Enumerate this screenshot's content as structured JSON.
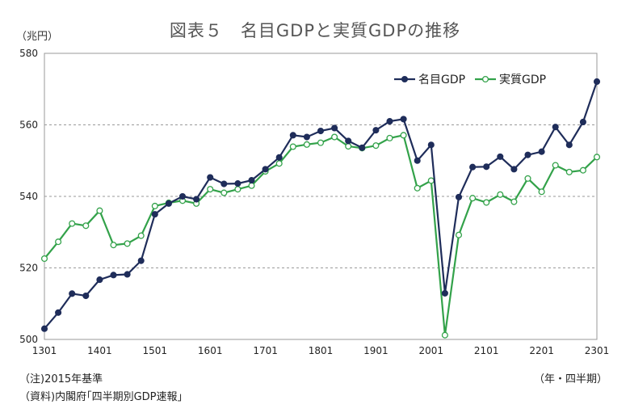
{
  "chart_data": {
    "type": "line",
    "title": "図表５　名目GDPと実質GDPの推移",
    "yunit": "（兆円）",
    "xunit": "（年・四半期）",
    "ylim": [
      500,
      580
    ],
    "yticks": [
      500,
      520,
      540,
      560,
      580
    ],
    "grid": true,
    "legend_position": "top-right",
    "x": [
      "1301",
      "1302",
      "1303",
      "1304",
      "1401",
      "1402",
      "1403",
      "1404",
      "1501",
      "1502",
      "1503",
      "1504",
      "1601",
      "1602",
      "1603",
      "1604",
      "1701",
      "1702",
      "1703",
      "1704",
      "1801",
      "1802",
      "1803",
      "1804",
      "1901",
      "1902",
      "1903",
      "1904",
      "2001",
      "2002",
      "2003",
      "2004",
      "2101",
      "2102",
      "2103",
      "2104",
      "2201",
      "2202",
      "2203",
      "2204",
      "2301"
    ],
    "xticks": [
      "1301",
      "1401",
      "1501",
      "1601",
      "1701",
      "1801",
      "1901",
      "2001",
      "2101",
      "2201",
      "2301"
    ],
    "series": [
      {
        "name": "名目GDP",
        "color": "#1f2d5a",
        "marker": "filled-circle",
        "values": [
          503.0,
          507.5,
          512.8,
          512.2,
          516.7,
          518.0,
          518.2,
          522.0,
          535.0,
          538.0,
          540.0,
          539.2,
          545.3,
          543.5,
          543.6,
          544.5,
          547.6,
          550.9,
          557.1,
          556.6,
          558.3,
          559.1,
          555.5,
          553.6,
          558.5,
          561.0,
          561.6,
          550.0,
          554.4,
          512.9,
          539.8,
          548.2,
          548.3,
          551.1,
          547.6,
          551.6,
          552.5,
          559.4,
          554.4,
          560.8,
          572.1
        ]
      },
      {
        "name": "実質GDP",
        "color": "#33a24a",
        "marker": "open-circle",
        "values": [
          522.6,
          527.3,
          532.4,
          531.8,
          536.0,
          526.4,
          526.8,
          529.0,
          537.3,
          538.2,
          538.8,
          538.0,
          542.0,
          541.0,
          542.0,
          543.0,
          547.0,
          549.2,
          553.9,
          554.5,
          555.0,
          556.6,
          554.0,
          553.5,
          554.2,
          556.3,
          557.1,
          542.3,
          544.4,
          501.2,
          529.2,
          539.5,
          538.3,
          540.5,
          538.5,
          545.0,
          541.3,
          548.7,
          546.8,
          547.3,
          551.0
        ]
      }
    ]
  },
  "notes": {
    "basis": "（注)2015年基準",
    "source": "（資料)内閣府｢四半期別GDP速報｣"
  }
}
